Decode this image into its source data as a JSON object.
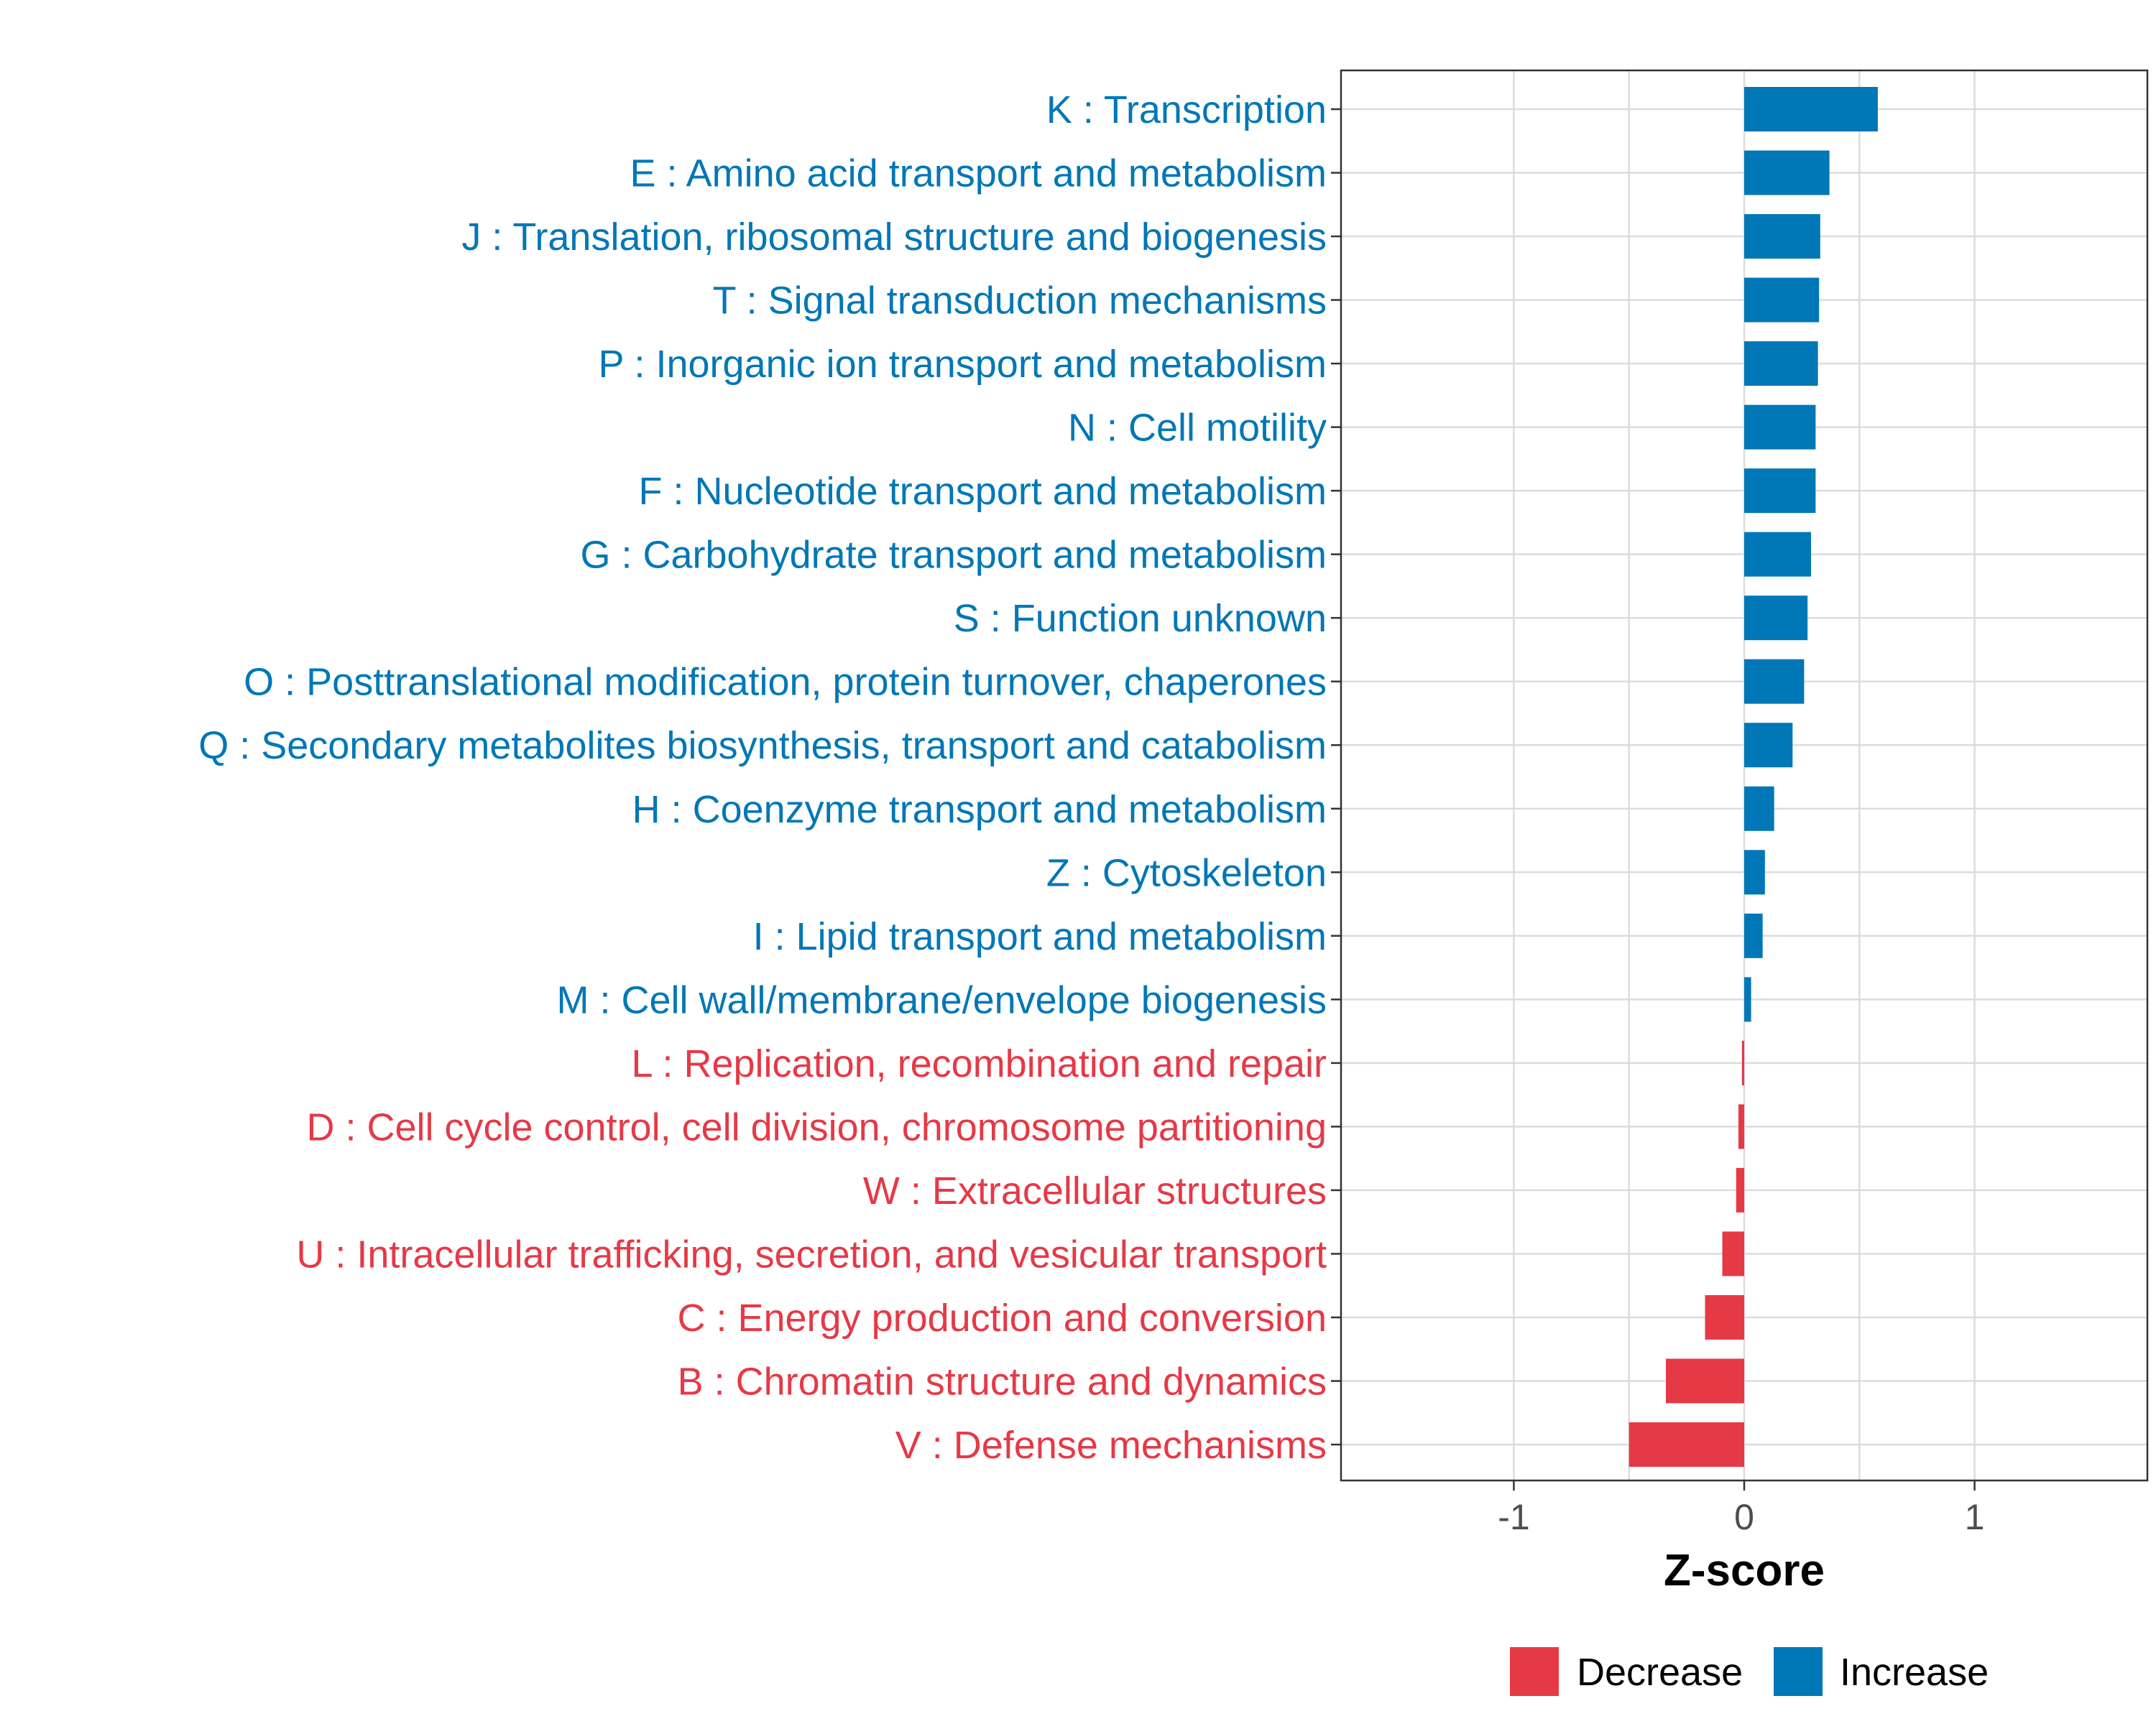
{
  "chart_data": {
    "type": "bar",
    "orientation": "horizontal",
    "title": "",
    "xlabel": "Z-score",
    "ylabel": "",
    "xlim": [
      -1.75,
      1.75
    ],
    "x_ticks": [
      -1,
      0,
      1
    ],
    "x_tick_labels": [
      "-1",
      "0",
      "1"
    ],
    "grid": true,
    "legend_position": "bottom",
    "colors": {
      "Decrease": "#e63946",
      "Increase": "#0077b6"
    },
    "legend": [
      {
        "name": "Decrease",
        "color": "#e63946"
      },
      {
        "name": "Increase",
        "color": "#0077b6"
      }
    ],
    "categories": [
      "K : Transcription",
      "E : Amino acid transport and metabolism",
      "J : Translation, ribosomal structure and biogenesis",
      "T : Signal transduction mechanisms",
      "P : Inorganic ion transport and metabolism",
      "N : Cell motility",
      "F : Nucleotide transport and metabolism",
      "G : Carbohydrate transport and metabolism",
      "S : Function unknown",
      "O : Posttranslational modification, protein turnover, chaperones",
      "Q : Secondary metabolites biosynthesis, transport and catabolism",
      "H : Coenzyme transport and metabolism",
      "Z : Cytoskeleton",
      "I : Lipid transport and metabolism",
      "M : Cell wall/membrane/envelope biogenesis",
      "L : Replication, recombination and repair",
      "D : Cell cycle control, cell division, chromosome partitioning",
      "W : Extracellular structures",
      "U : Intracellular trafficking, secretion, and vesicular transport",
      "C : Energy production and conversion",
      "B : Chromatin structure and dynamics",
      "V : Defense mechanisms"
    ],
    "values": [
      0.58,
      0.37,
      0.33,
      0.325,
      0.32,
      0.31,
      0.31,
      0.29,
      0.275,
      0.26,
      0.21,
      0.13,
      0.09,
      0.08,
      0.03,
      -0.01,
      -0.025,
      -0.035,
      -0.095,
      -0.17,
      -0.34,
      -0.5
    ],
    "direction": [
      "Increase",
      "Increase",
      "Increase",
      "Increase",
      "Increase",
      "Increase",
      "Increase",
      "Increase",
      "Increase",
      "Increase",
      "Increase",
      "Increase",
      "Increase",
      "Increase",
      "Increase",
      "Decrease",
      "Decrease",
      "Decrease",
      "Decrease",
      "Decrease",
      "Decrease",
      "Decrease"
    ]
  }
}
